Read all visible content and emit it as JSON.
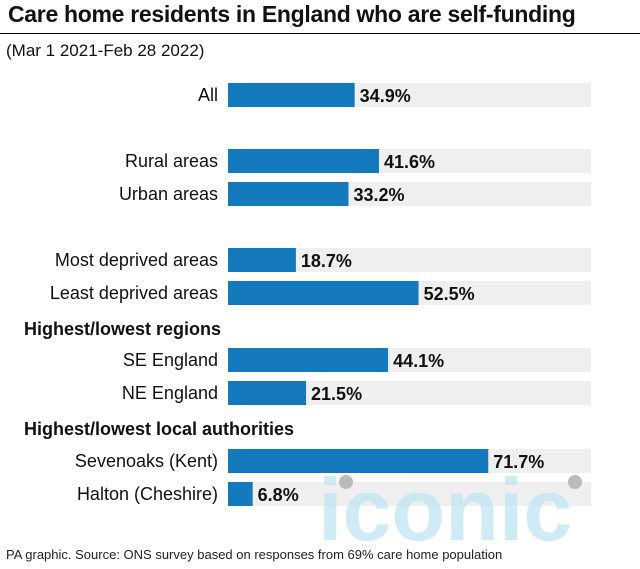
{
  "title": "Care home residents in England who are self-funding",
  "subtitle": "(Mar 1 2021-Feb 28 2022)",
  "footer": "PA graphic. Source: ONS survey based on responses from 69% care home population",
  "watermark": "iconic",
  "colors": {
    "bar": "#1479bd",
    "track": "#efefef",
    "watermark": "#bfe6f4"
  },
  "chart_data": {
    "type": "bar",
    "orientation": "horizontal",
    "unit": "%",
    "xlim": [
      0,
      100
    ],
    "groups": [
      {
        "heading": "",
        "items": [
          {
            "label": "All",
            "value": 34.9,
            "display": "34.9%"
          }
        ]
      },
      {
        "heading": "",
        "items": [
          {
            "label": "Rural areas",
            "value": 41.6,
            "display": "41.6%"
          },
          {
            "label": "Urban areas",
            "value": 33.2,
            "display": "33.2%"
          }
        ]
      },
      {
        "heading": "",
        "items": [
          {
            "label": "Most deprived areas",
            "value": 18.7,
            "display": "18.7%"
          },
          {
            "label": "Least deprived areas",
            "value": 52.5,
            "display": "52.5%"
          }
        ]
      },
      {
        "heading": "Highest/lowest regions",
        "items": [
          {
            "label": "SE England",
            "value": 44.1,
            "display": "44.1%"
          },
          {
            "label": "NE England",
            "value": 21.5,
            "display": "21.5%"
          }
        ]
      },
      {
        "heading": "Highest/lowest local authorities",
        "items": [
          {
            "label": "Sevenoaks (Kent)",
            "value": 71.7,
            "display": "71.7%"
          },
          {
            "label": "Halton (Cheshire)",
            "value": 6.8,
            "display": "6.8%"
          }
        ]
      }
    ]
  }
}
